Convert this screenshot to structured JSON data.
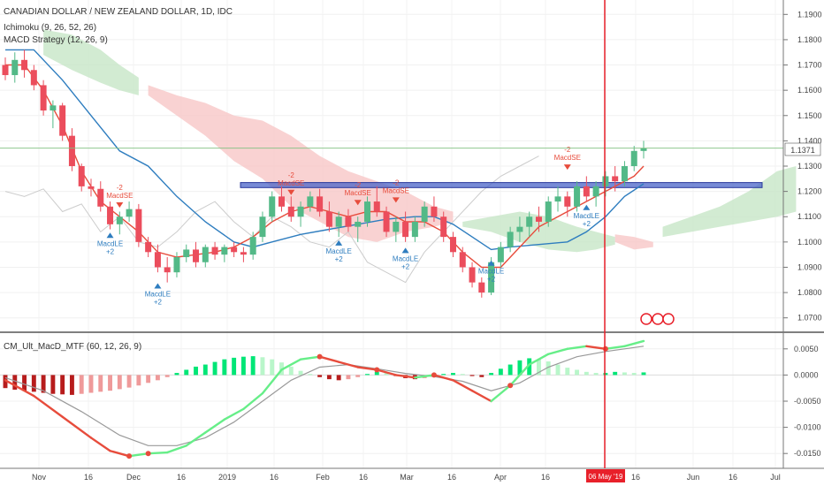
{
  "header": {
    "title": "CANADIAN DOLLAR / NEW ZEALAND DOLLAR, 1D, IDC",
    "indicator1": "Ichimoku (9, 26, 52, 26)",
    "indicator2": "MACD Strategy (12, 26, 9)",
    "lower_panel_title": "CM_Ult_MacD_MTF (60, 12, 26, 9)"
  },
  "current_price_label": "1.1371",
  "date_cursor_label": "06 May '19",
  "colors": {
    "up_candle": "#53b987",
    "down_candle": "#eb4d5c",
    "kijun": "#2e7dbf",
    "tenkan": "#e74c3c",
    "cloud_bear": "#f7c7c7",
    "cloud_bull": "#c7e6c7",
    "zone": "#4a64c8",
    "cursor": "#e8202a",
    "macd_green": "#66ee88",
    "macd_red": "#e74c3c",
    "signal": "#999999"
  },
  "chart_data": [
    {
      "type": "candlestick",
      "ylim": [
        1.065,
        1.195
      ],
      "y_ticks": [
        "1.1900",
        "1.1800",
        "1.1700",
        "1.1600",
        "1.1500",
        "1.1400",
        "1.1300",
        "1.1200",
        "1.1100",
        "1.1000",
        "1.0900",
        "1.0800",
        "1.0700"
      ],
      "x_ticks": [
        "Nov",
        "16",
        "Dec",
        "16",
        "2019",
        "16",
        "Feb",
        "16",
        "Mar",
        "16",
        "Apr",
        "16",
        "06 May '19",
        "16",
        "Jun",
        "16",
        "Jul"
      ],
      "ohlc_approx": [
        [
          1.17,
          1.173,
          1.164,
          1.166
        ],
        [
          1.166,
          1.175,
          1.163,
          1.172
        ],
        [
          1.172,
          1.176,
          1.165,
          1.168
        ],
        [
          1.168,
          1.17,
          1.16,
          1.162
        ],
        [
          1.162,
          1.164,
          1.15,
          1.152
        ],
        [
          1.152,
          1.156,
          1.145,
          1.154
        ],
        [
          1.154,
          1.155,
          1.14,
          1.142
        ],
        [
          1.142,
          1.145,
          1.128,
          1.13
        ],
        [
          1.13,
          1.131,
          1.12,
          1.122
        ],
        [
          1.122,
          1.125,
          1.118,
          1.121
        ],
        [
          1.121,
          1.124,
          1.112,
          1.114
        ],
        [
          1.114,
          1.116,
          1.105,
          1.107
        ],
        [
          1.107,
          1.112,
          1.103,
          1.11
        ],
        [
          1.11,
          1.116,
          1.108,
          1.113
        ],
        [
          1.113,
          1.115,
          1.098,
          1.1
        ],
        [
          1.1,
          1.102,
          1.094,
          1.096
        ],
        [
          1.096,
          1.099,
          1.088,
          1.09
        ],
        [
          1.09,
          1.094,
          1.084,
          1.088
        ],
        [
          1.088,
          1.096,
          1.086,
          1.094
        ],
        [
          1.094,
          1.099,
          1.092,
          1.097
        ],
        [
          1.097,
          1.1,
          1.09,
          1.092
        ],
        [
          1.092,
          1.099,
          1.09,
          1.098
        ],
        [
          1.098,
          1.1,
          1.093,
          1.095
        ],
        [
          1.095,
          1.099,
          1.092,
          1.098
        ],
        [
          1.098,
          1.1,
          1.094,
          1.096
        ],
        [
          1.096,
          1.098,
          1.092,
          1.095
        ],
        [
          1.095,
          1.104,
          1.093,
          1.102
        ],
        [
          1.102,
          1.112,
          1.1,
          1.11
        ],
        [
          1.11,
          1.12,
          1.108,
          1.118
        ],
        [
          1.118,
          1.122,
          1.112,
          1.114
        ],
        [
          1.114,
          1.118,
          1.108,
          1.11
        ],
        [
          1.11,
          1.116,
          1.106,
          1.114
        ],
        [
          1.114,
          1.12,
          1.112,
          1.118
        ],
        [
          1.118,
          1.121,
          1.11,
          1.112
        ],
        [
          1.112,
          1.116,
          1.104,
          1.106
        ],
        [
          1.106,
          1.112,
          1.102,
          1.11
        ],
        [
          1.11,
          1.113,
          1.104,
          1.106
        ],
        [
          1.106,
          1.11,
          1.1,
          1.108
        ],
        [
          1.108,
          1.118,
          1.106,
          1.116
        ],
        [
          1.116,
          1.122,
          1.11,
          1.112
        ],
        [
          1.112,
          1.114,
          1.102,
          1.104
        ],
        [
          1.104,
          1.11,
          1.1,
          1.108
        ],
        [
          1.108,
          1.112,
          1.1,
          1.102
        ],
        [
          1.102,
          1.11,
          1.1,
          1.108
        ],
        [
          1.108,
          1.116,
          1.106,
          1.114
        ],
        [
          1.114,
          1.118,
          1.108,
          1.11
        ],
        [
          1.11,
          1.112,
          1.1,
          1.102
        ],
        [
          1.102,
          1.104,
          1.094,
          1.096
        ],
        [
          1.096,
          1.098,
          1.088,
          1.09
        ],
        [
          1.09,
          1.092,
          1.082,
          1.084
        ],
        [
          1.084,
          1.086,
          1.078,
          1.08
        ],
        [
          1.08,
          1.094,
          1.079,
          1.092
        ],
        [
          1.092,
          1.1,
          1.09,
          1.098
        ],
        [
          1.098,
          1.106,
          1.096,
          1.104
        ],
        [
          1.104,
          1.11,
          1.1,
          1.106
        ],
        [
          1.106,
          1.112,
          1.102,
          1.11
        ],
        [
          1.11,
          1.114,
          1.104,
          1.108
        ],
        [
          1.108,
          1.118,
          1.106,
          1.116
        ],
        [
          1.116,
          1.122,
          1.112,
          1.118
        ],
        [
          1.118,
          1.12,
          1.11,
          1.114
        ],
        [
          1.114,
          1.124,
          1.112,
          1.122
        ],
        [
          1.122,
          1.126,
          1.116,
          1.118
        ],
        [
          1.118,
          1.124,
          1.114,
          1.122
        ],
        [
          1.122,
          1.128,
          1.118,
          1.126
        ],
        [
          1.126,
          1.13,
          1.12,
          1.124
        ],
        [
          1.124,
          1.132,
          1.122,
          1.13
        ],
        [
          1.13,
          1.138,
          1.128,
          1.136
        ],
        [
          1.136,
          1.14,
          1.133,
          1.137
        ]
      ],
      "annotations": [
        "MacdLE",
        "+2",
        "MacdSE",
        "-2"
      ],
      "resistance_zone": [
        1.1215,
        1.1235
      ]
    },
    {
      "type": "histogram+line",
      "ylim": [
        -0.0175,
        0.0075
      ],
      "y_ticks": [
        "0.0050",
        "0.0000",
        "-0.0050",
        "-0.0100",
        "-0.0150"
      ]
    }
  ]
}
